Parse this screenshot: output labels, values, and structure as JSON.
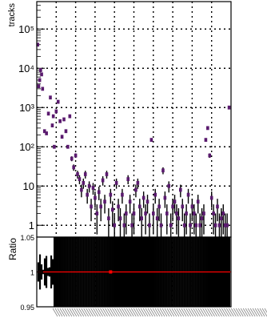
{
  "chart_data": [
    {
      "type": "scatter",
      "ylabel": "tracks",
      "yscale": "log",
      "ylim": [
        0.5,
        500000
      ],
      "grid": true,
      "y_ticks": [
        {
          "value": 1,
          "label": "1"
        },
        {
          "value": 10,
          "label": "10"
        },
        {
          "value": 100,
          "label": "10²"
        },
        {
          "value": 1000,
          "label": "10³"
        },
        {
          "value": 10000,
          "label": "10⁴"
        },
        {
          "value": 100000,
          "label": "10⁵"
        }
      ],
      "marker_color": "#5a1a6e",
      "series": [
        {
          "x": [
            0.005,
            0.01,
            0.015,
            0.02,
            0.025,
            0.03,
            0.04,
            0.05,
            0.06,
            0.07,
            0.08,
            0.085,
            0.09,
            0.1,
            0.11,
            0.12,
            0.13,
            0.14,
            0.15,
            0.16,
            0.17,
            0.18,
            0.19,
            0.2,
            0.21,
            0.22,
            0.23,
            0.24,
            0.25,
            0.26,
            0.27,
            0.28,
            0.29,
            0.3,
            0.31,
            0.32,
            0.33,
            0.34,
            0.35,
            0.36,
            0.37,
            0.38,
            0.39,
            0.4,
            0.41,
            0.42,
            0.43,
            0.44,
            0.45,
            0.46,
            0.47,
            0.48,
            0.49,
            0.5,
            0.51,
            0.52,
            0.53,
            0.54,
            0.55,
            0.56,
            0.57,
            0.58,
            0.59,
            0.6,
            0.61,
            0.62,
            0.63,
            0.64,
            0.65,
            0.66,
            0.67,
            0.68,
            0.69,
            0.7,
            0.71,
            0.72,
            0.73,
            0.74,
            0.75,
            0.76,
            0.77,
            0.78,
            0.79,
            0.8,
            0.81,
            0.82,
            0.83,
            0.84,
            0.85,
            0.86,
            0.87,
            0.88,
            0.89,
            0.9,
            0.91,
            0.92,
            0.93,
            0.94,
            0.95,
            0.96,
            0.97,
            0.98,
            0.99
          ],
          "y": [
            40000,
            3500,
            5000,
            9000,
            7000,
            3000,
            250,
            220,
            700,
            1800,
            350,
            600,
            100,
            800,
            1400,
            450,
            180,
            500,
            250,
            100,
            600,
            50,
            30,
            60,
            20,
            15,
            8,
            12,
            20,
            6,
            10,
            3,
            9,
            5,
            2,
            7,
            3,
            14,
            4,
            20,
            1.5,
            6,
            2.5,
            1,
            12,
            3,
            1.5,
            6,
            1,
            2,
            15,
            4,
            1,
            2,
            8,
            12,
            3,
            1.5,
            5,
            2,
            4,
            1,
            150,
            2,
            6,
            1.5,
            3,
            1,
            25,
            5,
            2,
            10,
            1,
            3,
            4,
            2,
            1.5,
            8,
            3,
            1,
            2,
            6,
            1,
            3,
            2,
            1,
            4,
            1,
            1.5,
            2,
            150,
            300,
            60,
            5,
            2,
            1,
            3,
            1,
            1.5,
            2,
            1,
            1,
            1000
          ]
        }
      ]
    },
    {
      "type": "scatter",
      "ylabel": "Ratio",
      "ylim": [
        0.95,
        1.05
      ],
      "grid": true,
      "y_ticks": [
        {
          "value": 0.95,
          "label": "0.95"
        },
        {
          "value": 1.0,
          "label": "1"
        },
        {
          "value": 1.05,
          "label": "1.05"
        }
      ],
      "reference_line": 1.0,
      "reference_color": "#ff0000",
      "series": [
        {
          "x": [
            0.38
          ],
          "y": [
            1.0
          ]
        }
      ]
    }
  ]
}
